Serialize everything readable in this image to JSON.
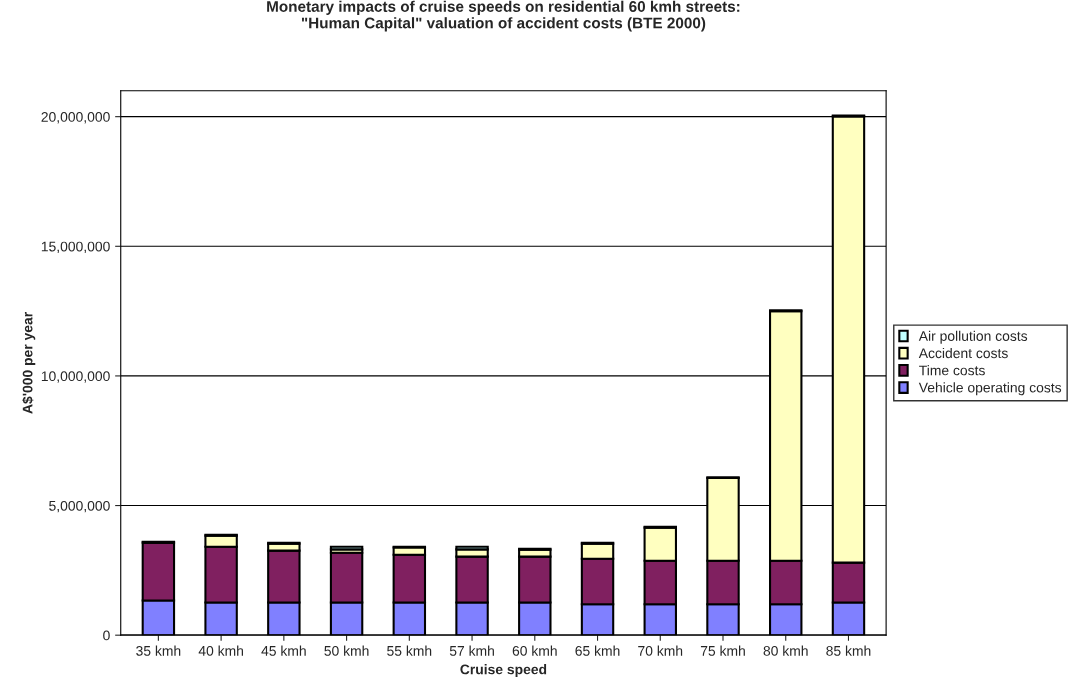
{
  "chart_data": {
    "type": "bar",
    "stacked": true,
    "title": "Monetary impacts of cruise speeds on residential 60 kmh streets:\n\"Human Capital\" valuation of accident costs (BTE 2000)",
    "xlabel": "Cruise speed",
    "ylabel": "A$'000 per year",
    "categories": [
      "35 kmh",
      "40 kmh",
      "45 kmh",
      "50 kmh",
      "55 kmh",
      "57 kmh",
      "60 kmh",
      "65 kmh",
      "70 kmh",
      "75 kmh",
      "80 kmh",
      "85 kmh"
    ],
    "series": [
      {
        "name": "Vehicle operating costs",
        "color": "#8080ff",
        "values": [
          1340000,
          1260000,
          1260000,
          1260000,
          1260000,
          1260000,
          1260000,
          1190000,
          1190000,
          1190000,
          1190000,
          1260000
        ]
      },
      {
        "name": "Time costs",
        "color": "#802060",
        "values": [
          2230000,
          2150000,
          2000000,
          1920000,
          1840000,
          1770000,
          1770000,
          1760000,
          1680000,
          1680000,
          1680000,
          1540000
        ]
      },
      {
        "name": "Accident costs",
        "color": "#ffffc0",
        "values": [
          null,
          430000,
          270000,
          130000,
          280000,
          280000,
          270000,
          580000,
          1280000,
          3190000,
          9630000,
          17210000
        ]
      },
      {
        "name": "Air pollution costs",
        "color": "#c0ffff",
        "values": [
          30000,
          30000,
          30000,
          100000,
          30000,
          100000,
          30000,
          30000,
          30000,
          30000,
          30000,
          30000
        ]
      }
    ],
    "ylim": [
      0,
      21000000
    ],
    "yticks": [
      {
        "value": 0,
        "label": "0"
      },
      {
        "value": 5000000,
        "label": "5,000,000"
      },
      {
        "value": 10000000,
        "label": "10,000,000"
      },
      {
        "value": 15000000,
        "label": "15,000,000"
      },
      {
        "value": 20000000,
        "label": "20,000,000"
      }
    ],
    "grid": "y",
    "legend": "right"
  }
}
